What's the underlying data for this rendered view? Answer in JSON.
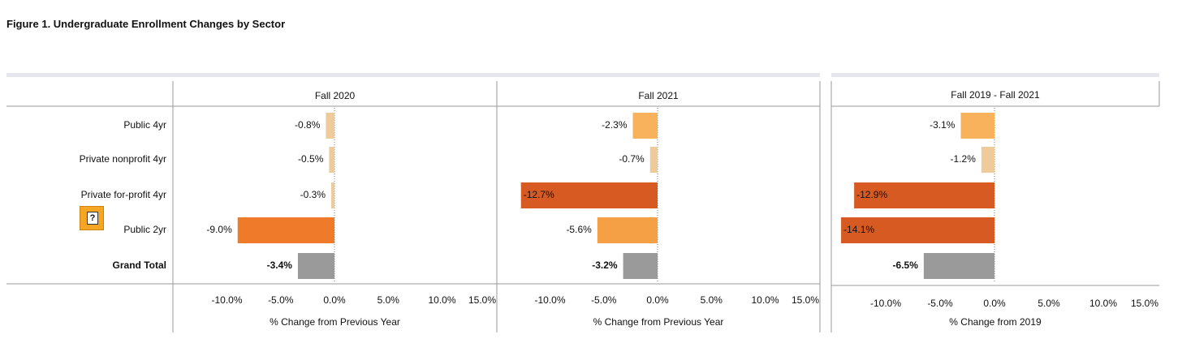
{
  "figure_title": "Figure 1. Undergraduate Enrollment Changes by Sector",
  "help_button_label": "?",
  "colors": {
    "light_tan": "#efcb9a",
    "light_orange": "#f9b25c",
    "medium_orange": "#f5a045",
    "orange": "#ee7a2a",
    "dark_orange": "#d65a22",
    "gray": "#9a9a9a",
    "band": "#e6e6ee",
    "frame": "#9a9a9a"
  },
  "chart_data": [
    {
      "type": "bar",
      "orientation": "horizontal",
      "title": "Fall 2020",
      "xlabel": "% Change from Previous Year",
      "categories": [
        "Public 4yr",
        "Private nonprofit 4yr",
        "Private for-profit 4yr",
        "Public 2yr",
        "Grand Total"
      ],
      "values": [
        -0.8,
        -0.5,
        -0.3,
        -9.0,
        -3.4
      ],
      "value_labels": [
        "-0.8%",
        "-0.5%",
        "-0.3%",
        "-9.0%",
        "-3.4%"
      ],
      "bar_colors": [
        "#efcb9a",
        "#efcb9a",
        "#efcb9a",
        "#ee7a2a",
        "#9a9a9a"
      ],
      "xlim": [
        -15,
        15
      ],
      "xticks": [
        -10,
        -5,
        0,
        5,
        10,
        15
      ],
      "xtick_labels": [
        "-10.0%",
        "-5.0%",
        "0.0%",
        "5.0%",
        "10.0%",
        "15.0%"
      ]
    },
    {
      "type": "bar",
      "orientation": "horizontal",
      "title": "Fall 2021",
      "xlabel": "% Change from Previous Year",
      "categories": [
        "Public 4yr",
        "Private nonprofit 4yr",
        "Private for-profit 4yr",
        "Public 2yr",
        "Grand Total"
      ],
      "values": [
        -2.3,
        -0.7,
        -12.7,
        -5.6,
        -3.2
      ],
      "value_labels": [
        "-2.3%",
        "-0.7%",
        "-12.7%",
        "-5.6%",
        "-3.2%"
      ],
      "bar_colors": [
        "#f9b25c",
        "#efcb9a",
        "#d65a22",
        "#f5a045",
        "#9a9a9a"
      ],
      "xlim": [
        -15,
        15
      ],
      "xticks": [
        -10,
        -5,
        0,
        5,
        10,
        15
      ],
      "xtick_labels": [
        "-10.0%",
        "-5.0%",
        "0.0%",
        "5.0%",
        "10.0%",
        "15.0%"
      ]
    },
    {
      "type": "bar",
      "orientation": "horizontal",
      "title": "Fall 2019 - Fall 2021",
      "xlabel": "% Change from 2019",
      "categories": [
        "Public 4yr",
        "Private nonprofit 4yr",
        "Private for-profit 4yr",
        "Public 2yr",
        "Grand Total"
      ],
      "values": [
        -3.1,
        -1.2,
        -12.9,
        -14.1,
        -6.5
      ],
      "value_labels": [
        "-3.1%",
        "-1.2%",
        "-12.9%",
        "-14.1%",
        "-6.5%"
      ],
      "bar_colors": [
        "#f9b25c",
        "#efcb9a",
        "#d65a22",
        "#d65a22",
        "#9a9a9a"
      ],
      "xlim": [
        -14.5,
        14.5
      ],
      "xticks": [
        -10,
        -5,
        0,
        5,
        10,
        15
      ],
      "xtick_labels": [
        "-10.0%",
        "-5.0%",
        "0.0%",
        "5.0%",
        "10.0%",
        "15.0%"
      ]
    }
  ]
}
